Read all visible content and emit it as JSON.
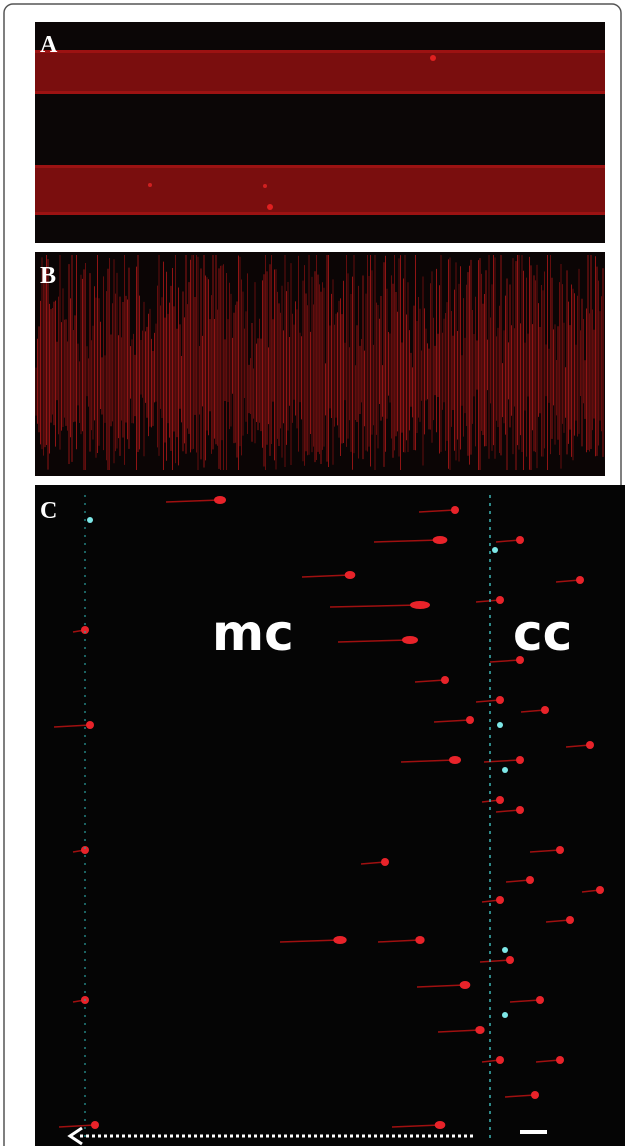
{
  "panels": [
    {
      "label": "A"
    },
    {
      "label": "B"
    },
    {
      "label": "C",
      "annotations": [
        "mc",
        "cc"
      ]
    }
  ]
}
